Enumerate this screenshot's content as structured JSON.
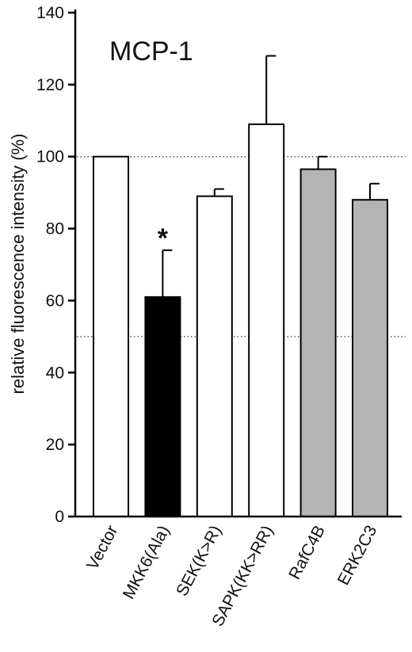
{
  "chart_data": {
    "type": "bar",
    "title": "MCP-1",
    "ylabel": "relative fluorescence intensity (%)",
    "xlabel": "",
    "ylim": [
      0,
      140
    ],
    "yticks": [
      "0",
      "20",
      "40",
      "60",
      "80",
      "100",
      "120",
      "140"
    ],
    "yticks_values": [
      0,
      20,
      40,
      60,
      80,
      100,
      120,
      140
    ],
    "categories": [
      "Vector",
      "MKK6(Ala)",
      "SEK(K>R)",
      "SAPK(KK>RR)",
      "RafC4B",
      "ERK2C3"
    ],
    "values": [
      100,
      61,
      89,
      109,
      96.5,
      88
    ],
    "errors": [
      0,
      13,
      2,
      19,
      3.5,
      4.5
    ],
    "bar_colors": [
      "#ffffff",
      "#000000",
      "#ffffff",
      "#ffffff",
      "#b4b4b4",
      "#b4b4b4"
    ],
    "annotations": [
      {
        "category": "MKK6(Ala)",
        "text": "*"
      }
    ],
    "reference_lines": [
      100,
      50
    ],
    "grid": false
  }
}
